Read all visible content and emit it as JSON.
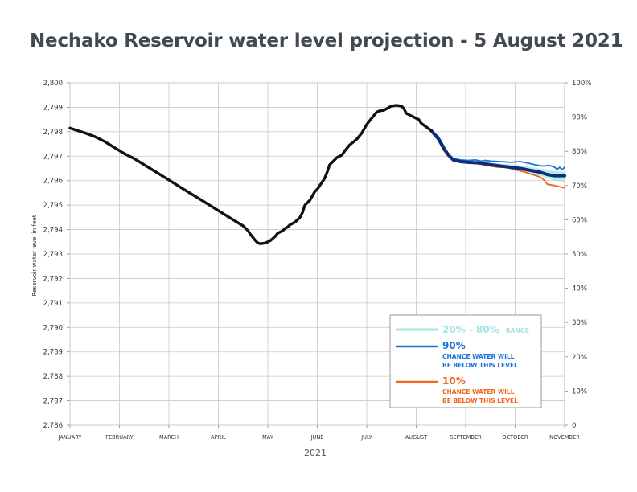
{
  "title": "Nechako Reservoir water level projection - 5 August 2021",
  "chart_data": {
    "type": "line",
    "title": "Nechako Reservoir water level projection - 5 August 2021",
    "xlabel": "2021",
    "ylabel": "Reservoir water level in feet",
    "x_ticks": [
      "JANUARY",
      "FEBRUARY",
      "MARCH",
      "APRIL",
      "MAY",
      "JUNE",
      "JULY",
      "AUGUST",
      "SEPTEMBER",
      "OCTOBER",
      "NOVEMBER"
    ],
    "x_domain": [
      0,
      10
    ],
    "ylim": [
      2786,
      2800
    ],
    "y_ticks": [
      "2,786",
      "2,787",
      "2,788",
      "2,789",
      "2,790",
      "2,791",
      "2,792",
      "2,793",
      "2,794",
      "2,795",
      "2,796",
      "2,797",
      "2,798",
      "2,799",
      "2,800"
    ],
    "y2lim": [
      0,
      100
    ],
    "y2_ticks": [
      "0",
      "10%",
      "20%",
      "30%",
      "40%",
      "50%",
      "60%",
      "70%",
      "80%",
      "90%",
      "100%"
    ],
    "grid": true,
    "legend_position": "bottom-right",
    "legend": {
      "range": {
        "label": "20% - 80%",
        "suffix": "RANGE",
        "color": "#a6e3e3"
      },
      "p90": {
        "label": "90%",
        "line1": "CHANCE WATER WILL",
        "line2": "BE BELOW THIS LEVEL",
        "color": "#1a73d9"
      },
      "p10": {
        "label": "10%",
        "line1": "CHANCE WATER WILL",
        "line2": "BE BELOW THIS LEVEL",
        "color": "#f26522"
      }
    },
    "series": [
      {
        "key": "observed",
        "color": "#111111",
        "points": [
          [
            0,
            2798.15
          ],
          [
            0.1,
            2798.08
          ],
          [
            0.3,
            2797.95
          ],
          [
            0.5,
            2797.8
          ],
          [
            0.7,
            2797.6
          ],
          [
            0.9,
            2797.35
          ],
          [
            1.1,
            2797.1
          ],
          [
            1.3,
            2796.9
          ],
          [
            1.5,
            2796.65
          ],
          [
            1.7,
            2796.4
          ],
          [
            1.9,
            2796.15
          ],
          [
            2.1,
            2795.9
          ],
          [
            2.3,
            2795.65
          ],
          [
            2.5,
            2795.4
          ],
          [
            2.7,
            2795.15
          ],
          [
            2.9,
            2794.9
          ],
          [
            3.1,
            2794.65
          ],
          [
            3.3,
            2794.4
          ],
          [
            3.5,
            2794.15
          ],
          [
            3.6,
            2793.95
          ],
          [
            3.65,
            2793.8
          ],
          [
            3.75,
            2793.55
          ],
          [
            3.8,
            2793.45
          ],
          [
            3.85,
            2793.42
          ],
          [
            3.95,
            2793.45
          ],
          [
            4.05,
            2793.55
          ],
          [
            4.15,
            2793.72
          ],
          [
            4.2,
            2793.85
          ],
          [
            4.3,
            2793.95
          ],
          [
            4.35,
            2794.05
          ],
          [
            4.4,
            2794.1
          ],
          [
            4.45,
            2794.2
          ],
          [
            4.55,
            2794.3
          ],
          [
            4.65,
            2794.5
          ],
          [
            4.7,
            2794.7
          ],
          [
            4.75,
            2795.0
          ],
          [
            4.85,
            2795.2
          ],
          [
            4.95,
            2795.55
          ],
          [
            5.0,
            2795.65
          ],
          [
            5.05,
            2795.8
          ],
          [
            5.15,
            2796.1
          ],
          [
            5.2,
            2796.35
          ],
          [
            5.25,
            2796.65
          ],
          [
            5.35,
            2796.85
          ],
          [
            5.4,
            2796.95
          ],
          [
            5.5,
            2797.05
          ],
          [
            5.55,
            2797.2
          ],
          [
            5.65,
            2797.45
          ],
          [
            5.8,
            2797.7
          ],
          [
            5.9,
            2797.95
          ],
          [
            6.0,
            2798.3
          ],
          [
            6.1,
            2798.55
          ],
          [
            6.2,
            2798.8
          ],
          [
            6.25,
            2798.85
          ],
          [
            6.35,
            2798.88
          ],
          [
            6.45,
            2799.0
          ],
          [
            6.5,
            2799.05
          ],
          [
            6.6,
            2799.08
          ],
          [
            6.7,
            2799.05
          ],
          [
            6.75,
            2798.95
          ],
          [
            6.8,
            2798.75
          ],
          [
            6.9,
            2798.65
          ],
          [
            6.95,
            2798.6
          ],
          [
            7.05,
            2798.5
          ],
          [
            7.1,
            2798.35
          ],
          [
            7.2,
            2798.2
          ],
          [
            7.3,
            2798.05
          ]
        ]
      },
      {
        "key": "p90",
        "color": "#1a73d9",
        "points": [
          [
            7.3,
            2798.05
          ],
          [
            7.45,
            2797.8
          ],
          [
            7.55,
            2797.45
          ],
          [
            7.65,
            2797.05
          ],
          [
            7.75,
            2796.9
          ],
          [
            7.9,
            2796.85
          ],
          [
            8.05,
            2796.83
          ],
          [
            8.2,
            2796.85
          ],
          [
            8.3,
            2796.8
          ],
          [
            8.4,
            2796.83
          ],
          [
            8.5,
            2796.8
          ],
          [
            8.7,
            2796.78
          ],
          [
            8.9,
            2796.75
          ],
          [
            9.1,
            2796.78
          ],
          [
            9.25,
            2796.72
          ],
          [
            9.4,
            2796.65
          ],
          [
            9.55,
            2796.6
          ],
          [
            9.7,
            2796.62
          ],
          [
            9.8,
            2796.55
          ],
          [
            9.85,
            2796.45
          ],
          [
            9.9,
            2796.55
          ],
          [
            9.95,
            2796.45
          ],
          [
            10.0,
            2796.55
          ]
        ]
      },
      {
        "key": "p10",
        "color": "#f26522",
        "points": [
          [
            7.3,
            2798.05
          ],
          [
            7.45,
            2797.65
          ],
          [
            7.55,
            2797.25
          ],
          [
            7.65,
            2797.0
          ],
          [
            7.75,
            2796.85
          ],
          [
            7.9,
            2796.75
          ],
          [
            8.05,
            2796.72
          ],
          [
            8.2,
            2796.7
          ],
          [
            8.35,
            2796.65
          ],
          [
            8.5,
            2796.6
          ],
          [
            8.65,
            2796.55
          ],
          [
            8.8,
            2796.55
          ],
          [
            9.0,
            2796.45
          ],
          [
            9.2,
            2796.35
          ],
          [
            9.35,
            2796.25
          ],
          [
            9.5,
            2796.15
          ],
          [
            9.6,
            2796.0
          ],
          [
            9.65,
            2795.85
          ],
          [
            9.8,
            2795.8
          ],
          [
            9.9,
            2795.75
          ],
          [
            10.0,
            2795.7
          ]
        ]
      },
      {
        "key": "median",
        "color": "#0d2d78",
        "points": [
          [
            7.3,
            2798.05
          ],
          [
            7.45,
            2797.7
          ],
          [
            7.55,
            2797.35
          ],
          [
            7.65,
            2797.05
          ],
          [
            7.75,
            2796.85
          ],
          [
            7.9,
            2796.78
          ],
          [
            8.05,
            2796.75
          ],
          [
            8.3,
            2796.72
          ],
          [
            8.5,
            2796.65
          ],
          [
            8.7,
            2796.6
          ],
          [
            8.9,
            2796.55
          ],
          [
            9.1,
            2796.5
          ],
          [
            9.3,
            2796.42
          ],
          [
            9.5,
            2796.35
          ],
          [
            9.65,
            2796.25
          ],
          [
            9.8,
            2796.2
          ],
          [
            10.0,
            2796.2
          ]
        ]
      }
    ],
    "range_band": {
      "color": "#a6e3e3",
      "upper": [
        [
          7.3,
          2798.05
        ],
        [
          7.55,
          2797.4
        ],
        [
          7.75,
          2796.88
        ],
        [
          8.05,
          2796.8
        ],
        [
          8.5,
          2796.72
        ],
        [
          9.0,
          2796.65
        ],
        [
          9.5,
          2796.5
        ],
        [
          9.8,
          2796.4
        ],
        [
          10.0,
          2796.35
        ]
      ],
      "lower": [
        [
          7.3,
          2798.05
        ],
        [
          7.55,
          2797.3
        ],
        [
          7.75,
          2796.82
        ],
        [
          8.05,
          2796.7
        ],
        [
          8.5,
          2796.6
        ],
        [
          9.0,
          2796.45
        ],
        [
          9.5,
          2796.2
        ],
        [
          9.8,
          2796.0
        ],
        [
          10.0,
          2795.95
        ]
      ]
    }
  }
}
